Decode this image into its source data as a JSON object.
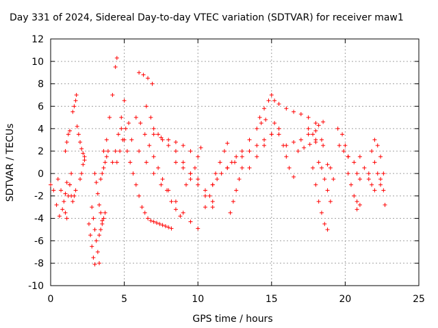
{
  "chart_data": {
    "type": "scatter",
    "title": "Day 331 of 2024, Sidereal Day-to-day VTEC variation (SDTVAR) for receiver maw1",
    "xlabel": "GPS time / hours",
    "ylabel": "SDTVAR / TECUs",
    "xlim": [
      0,
      25
    ],
    "ylim": [
      -10,
      12
    ],
    "xticks": [
      0,
      5,
      10,
      15,
      20,
      25
    ],
    "yticks": [
      -10,
      -8,
      -6,
      -4,
      -2,
      0,
      2,
      4,
      6,
      8,
      10,
      12
    ],
    "grid": true,
    "marker": "plus",
    "color": "#ff0000",
    "series": [
      {
        "name": "trace-a",
        "x": [
          0.0,
          0.2,
          0.4,
          0.6,
          0.8,
          1.0,
          1.1
        ],
        "y": [
          -1.0,
          -1.5,
          -2.8,
          -3.8,
          -3.2,
          -1.8,
          -0.8
        ]
      },
      {
        "name": "trace-b",
        "x": [
          0.5,
          0.7,
          0.9,
          1.0,
          1.1,
          1.2,
          1.3,
          1.4
        ],
        "y": [
          -0.5,
          -1.5,
          -2.5,
          -3.5,
          -4.0,
          -2.0,
          -1.0,
          0.0
        ]
      },
      {
        "name": "trace-c",
        "x": [
          1.0,
          1.1,
          1.2,
          1.3
        ],
        "y": [
          2.0,
          2.8,
          3.5,
          3.8
        ]
      },
      {
        "name": "trace-d",
        "x": [
          1.3,
          1.4,
          1.5,
          1.6,
          1.7
        ],
        "y": [
          -1.0,
          -2.0,
          -2.5,
          -2.0,
          -1.5
        ]
      },
      {
        "name": "trace-e",
        "x": [
          1.5,
          1.6,
          1.7,
          1.75
        ],
        "y": [
          5.5,
          6.0,
          6.5,
          7.0
        ]
      },
      {
        "name": "trace-f",
        "x": [
          1.8,
          1.9,
          2.0,
          2.1,
          2.2,
          2.3
        ],
        "y": [
          4.2,
          3.5,
          2.8,
          2.2,
          1.8,
          1.5
        ]
      },
      {
        "name": "trace-g",
        "x": [
          2.0,
          2.1,
          2.2,
          2.3
        ],
        "y": [
          -0.5,
          0.0,
          0.8,
          1.2
        ]
      },
      {
        "name": "trace-h",
        "x": [
          2.6,
          2.7,
          2.8,
          2.9,
          3.0
        ],
        "y": [
          -4.5,
          -5.5,
          -6.5,
          -7.5,
          -8.1
        ]
      },
      {
        "name": "trace-i",
        "x": [
          2.8,
          2.9,
          3.0,
          3.1,
          3.2,
          3.3
        ],
        "y": [
          -3.0,
          -4.0,
          -5.0,
          -6.0,
          -7.0,
          -8.0
        ]
      },
      {
        "name": "trace-j",
        "x": [
          3.0,
          3.1,
          3.2,
          3.3,
          3.4,
          3.5
        ],
        "y": [
          0.0,
          -0.8,
          -1.8,
          -2.8,
          -3.5,
          -4.2
        ]
      },
      {
        "name": "trace-k",
        "x": [
          3.3,
          3.4,
          3.5,
          3.6,
          3.7
        ],
        "y": [
          -5.5,
          -5.0,
          -4.5,
          -4.0,
          -3.5
        ]
      },
      {
        "name": "trace-l",
        "x": [
          3.4,
          3.5,
          3.6,
          3.7,
          3.8,
          3.9
        ],
        "y": [
          -0.5,
          0.0,
          0.5,
          1.0,
          1.5,
          2.0
        ]
      },
      {
        "name": "trace-m",
        "x": [
          3.6,
          3.8,
          4.0,
          4.2,
          4.4,
          4.5
        ],
        "y": [
          2.0,
          3.0,
          5.0,
          7.0,
          9.5,
          10.3
        ]
      },
      {
        "name": "trace-n",
        "x": [
          4.2,
          4.4,
          4.6,
          4.8,
          5.0
        ],
        "y": [
          1.0,
          2.0,
          3.5,
          5.0,
          6.5
        ]
      },
      {
        "name": "trace-o",
        "x": [
          4.5,
          4.7,
          4.9,
          5.1,
          5.3
        ],
        "y": [
          1.0,
          2.0,
          3.0,
          4.0,
          4.5
        ]
      },
      {
        "name": "trace-p",
        "x": [
          4.8,
          5.0,
          5.2,
          5.4,
          5.6,
          5.8,
          6.0,
          6.2,
          6.4,
          6.6,
          6.8,
          7.0,
          7.2,
          7.4,
          7.6,
          7.8,
          8.0,
          8.2
        ],
        "y": [
          4.0,
          3.0,
          2.0,
          1.0,
          0.0,
          -1.0,
          -2.0,
          -3.0,
          -3.5,
          -4.0,
          -4.2,
          -4.3,
          -4.4,
          -4.5,
          -4.6,
          -4.7,
          -4.8,
          -4.9
        ]
      },
      {
        "name": "trace-q",
        "x": [
          5.5,
          6.0,
          6.5,
          7.0,
          7.5,
          8.0,
          8.5,
          9.0,
          9.5,
          10.0
        ],
        "y": [
          3.0,
          2.0,
          1.0,
          0.0,
          -1.0,
          -1.5,
          -2.5,
          -3.5,
          -4.3,
          -4.9
        ]
      },
      {
        "name": "trace-r",
        "x": [
          5.8,
          6.1,
          6.4,
          6.7,
          7.0,
          7.3,
          7.6,
          7.9,
          8.2,
          8.5,
          8.8
        ],
        "y": [
          5.0,
          4.5,
          3.5,
          2.5,
          1.5,
          0.5,
          -0.5,
          -1.5,
          -2.5,
          -3.2,
          -3.8
        ]
      },
      {
        "name": "trace-s",
        "x": [
          6.0,
          6.3,
          6.6,
          6.9
        ],
        "y": [
          9.0,
          8.8,
          8.5,
          8.0
        ]
      },
      {
        "name": "trace-t",
        "x": [
          6.5,
          6.8,
          7.0,
          7.3,
          7.6,
          8.0,
          8.5,
          9.0,
          9.5,
          10.0,
          10.5,
          11.0
        ],
        "y": [
          6.0,
          5.0,
          4.0,
          3.5,
          3.0,
          2.5,
          2.0,
          1.0,
          0.0,
          -1.0,
          -2.0,
          -3.0
        ]
      },
      {
        "name": "trace-u",
        "x": [
          7.0,
          7.5,
          8.0,
          8.5,
          9.0,
          9.5
        ],
        "y": [
          3.5,
          3.2,
          3.0,
          2.8,
          2.5,
          2.0
        ]
      },
      {
        "name": "trace-v",
        "x": [
          8.5,
          9.0,
          9.5,
          10.0,
          10.5,
          11.0
        ],
        "y": [
          1.0,
          0.5,
          0.0,
          -0.5,
          -1.5,
          -2.5
        ]
      },
      {
        "name": "trace-w",
        "x": [
          9.2,
          9.5,
          9.8,
          10.0,
          10.2
        ],
        "y": [
          -1.0,
          -0.5,
          0.5,
          1.5,
          2.3
        ]
      },
      {
        "name": "trace-x",
        "x": [
          10.5,
          10.8,
          11.0,
          11.2,
          11.5,
          11.8,
          12.0
        ],
        "y": [
          -3.0,
          -2.0,
          -1.0,
          0.0,
          1.0,
          2.0,
          2.7
        ]
      },
      {
        "name": "trace-y",
        "x": [
          11.0,
          11.3,
          11.6,
          12.0,
          12.3,
          12.6
        ],
        "y": [
          -1.0,
          -0.5,
          0.0,
          0.5,
          1.0,
          1.5
        ]
      },
      {
        "name": "trace-z",
        "x": [
          12.2,
          12.4,
          12.6,
          12.8,
          13.0
        ],
        "y": [
          -3.5,
          -2.5,
          -1.5,
          -0.5,
          0.5
        ]
      },
      {
        "name": "trace-aa",
        "x": [
          12.0,
          12.5,
          13.0,
          13.5,
          14.0,
          14.5,
          15.0
        ],
        "y": [
          0.5,
          1.0,
          1.5,
          2.0,
          2.5,
          3.0,
          3.5
        ]
      },
      {
        "name": "trace-ab",
        "x": [
          13.0,
          13.5,
          14.0,
          14.3,
          14.6
        ],
        "y": [
          2.0,
          3.0,
          4.0,
          4.5,
          4.8
        ]
      },
      {
        "name": "trace-ac",
        "x": [
          13.5,
          14.0,
          14.5,
          15.0,
          15.5
        ],
        "y": [
          0.5,
          1.5,
          2.5,
          3.5,
          4.0
        ]
      },
      {
        "name": "trace-ad",
        "x": [
          14.2,
          14.5,
          14.8,
          15.0,
          15.2
        ],
        "y": [
          5.0,
          5.8,
          6.5,
          7.0,
          6.5
        ]
      },
      {
        "name": "trace-ae",
        "x": [
          15.2,
          15.5,
          15.8,
          16.0,
          16.2,
          16.5
        ],
        "y": [
          4.5,
          3.5,
          2.5,
          1.5,
          0.5,
          -0.3
        ]
      },
      {
        "name": "trace-af",
        "x": [
          15.5,
          16.0,
          16.5,
          17.0,
          17.5,
          18.0
        ],
        "y": [
          6.2,
          5.8,
          5.5,
          5.3,
          5.0,
          4.5
        ]
      },
      {
        "name": "trace-ag",
        "x": [
          16.0,
          16.5,
          17.0,
          17.5,
          18.0,
          18.5
        ],
        "y": [
          2.5,
          2.8,
          3.0,
          3.5,
          3.0,
          2.5
        ]
      },
      {
        "name": "trace-ah",
        "x": [
          16.8,
          17.2,
          17.6,
          18.0,
          18.4
        ],
        "y": [
          2.0,
          2.3,
          2.6,
          2.8,
          3.0
        ]
      },
      {
        "name": "trace-ai",
        "x": [
          17.5,
          17.8,
          18.0,
          18.2,
          18.5
        ],
        "y": [
          4.0,
          3.5,
          3.8,
          4.3,
          4.6
        ]
      },
      {
        "name": "trace-aj",
        "x": [
          17.8,
          18.0,
          18.2,
          18.4,
          18.6,
          18.8
        ],
        "y": [
          0.5,
          -1.0,
          -2.5,
          -3.5,
          -4.5,
          -5.0
        ]
      },
      {
        "name": "trace-ak",
        "x": [
          18.2,
          18.4,
          18.6,
          18.8,
          19.0
        ],
        "y": [
          1.0,
          0.5,
          -0.5,
          -1.5,
          -2.5
        ]
      },
      {
        "name": "trace-al",
        "x": [
          18.8,
          19.0,
          19.2
        ],
        "y": [
          0.8,
          0.5,
          -0.5
        ]
      },
      {
        "name": "trace-am",
        "x": [
          19.5,
          19.8,
          20.0,
          20.2
        ],
        "y": [
          4.0,
          3.5,
          2.5,
          1.5
        ]
      },
      {
        "name": "trace-an",
        "x": [
          19.6,
          19.9,
          20.2
        ],
        "y": [
          2.5,
          2.0,
          1.5
        ]
      },
      {
        "name": "trace-ao",
        "x": [
          20.2,
          20.4,
          20.6,
          20.8
        ],
        "y": [
          0.0,
          -1.0,
          -2.0,
          -2.5
        ]
      },
      {
        "name": "trace-ap",
        "x": [
          20.6,
          20.8,
          21.0
        ],
        "y": [
          1.0,
          0.0,
          -0.5
        ]
      },
      {
        "name": "trace-aq",
        "x": [
          20.8,
          21.0
        ],
        "y": [
          -3.2,
          -2.8
        ]
      },
      {
        "name": "trace-ar",
        "x": [
          21.0,
          21.3,
          21.6
        ],
        "y": [
          1.5,
          0.5,
          -0.5
        ]
      },
      {
        "name": "trace-as",
        "x": [
          21.6,
          21.8,
          22.0
        ],
        "y": [
          0.0,
          -1.0,
          -1.5
        ]
      },
      {
        "name": "trace-at",
        "x": [
          21.8,
          22.0,
          22.2,
          22.4
        ],
        "y": [
          2.0,
          1.0,
          0.0,
          -1.0
        ]
      },
      {
        "name": "trace-au",
        "x": [
          22.0,
          22.2,
          22.4,
          22.6
        ],
        "y": [
          3.0,
          2.5,
          1.5,
          0.0
        ]
      },
      {
        "name": "trace-av",
        "x": [
          22.4,
          22.6,
          22.7
        ],
        "y": [
          -0.5,
          -1.5,
          -2.8
        ]
      }
    ]
  }
}
